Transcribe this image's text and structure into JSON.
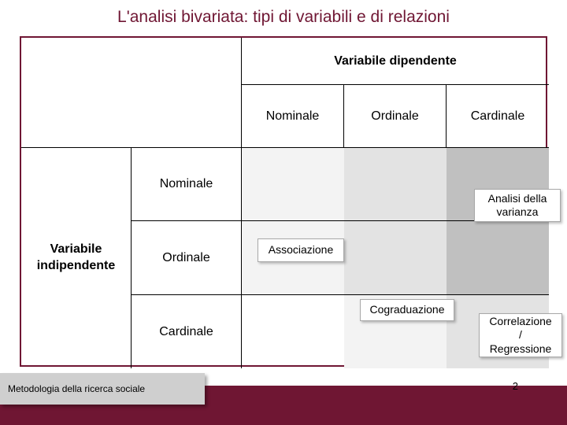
{
  "title": "L'analisi bivariata: tipi di variabili e di relazioni",
  "colors": {
    "accent": "#6f1633",
    "shade_light": "#f3f3f3",
    "shade_med": "#e3e3e3",
    "shade_dark": "#c0c0c0",
    "footer_bar": "#6f1633",
    "footer_box": "#cfcfcf"
  },
  "table": {
    "dep_header": "Variabile dipendente",
    "indep_header": "Variabile\nindipendente",
    "columns": [
      "Nominale",
      "Ordinale",
      "Cardinale"
    ],
    "rows": [
      "Nominale",
      "Ordinale",
      "Cardinale"
    ],
    "cells": {
      "associazione": "Associazione",
      "analisi_varianza": "Analisi della\nvarianza",
      "cograduazione": "Cograduazione",
      "correlazione_regressione": "Correlazione\n/\nRegressione"
    },
    "shading": {
      "comment": "3x3 body grid shading by row,col (0-indexed) — matches slide",
      "grid": [
        [
          "light",
          "med",
          "dark"
        ],
        [
          "light",
          "med",
          "dark"
        ],
        [
          "none",
          "light",
          "med"
        ]
      ]
    }
  },
  "footer": {
    "left_text": "Metodologia della ricerca sociale",
    "page_number": "2"
  }
}
